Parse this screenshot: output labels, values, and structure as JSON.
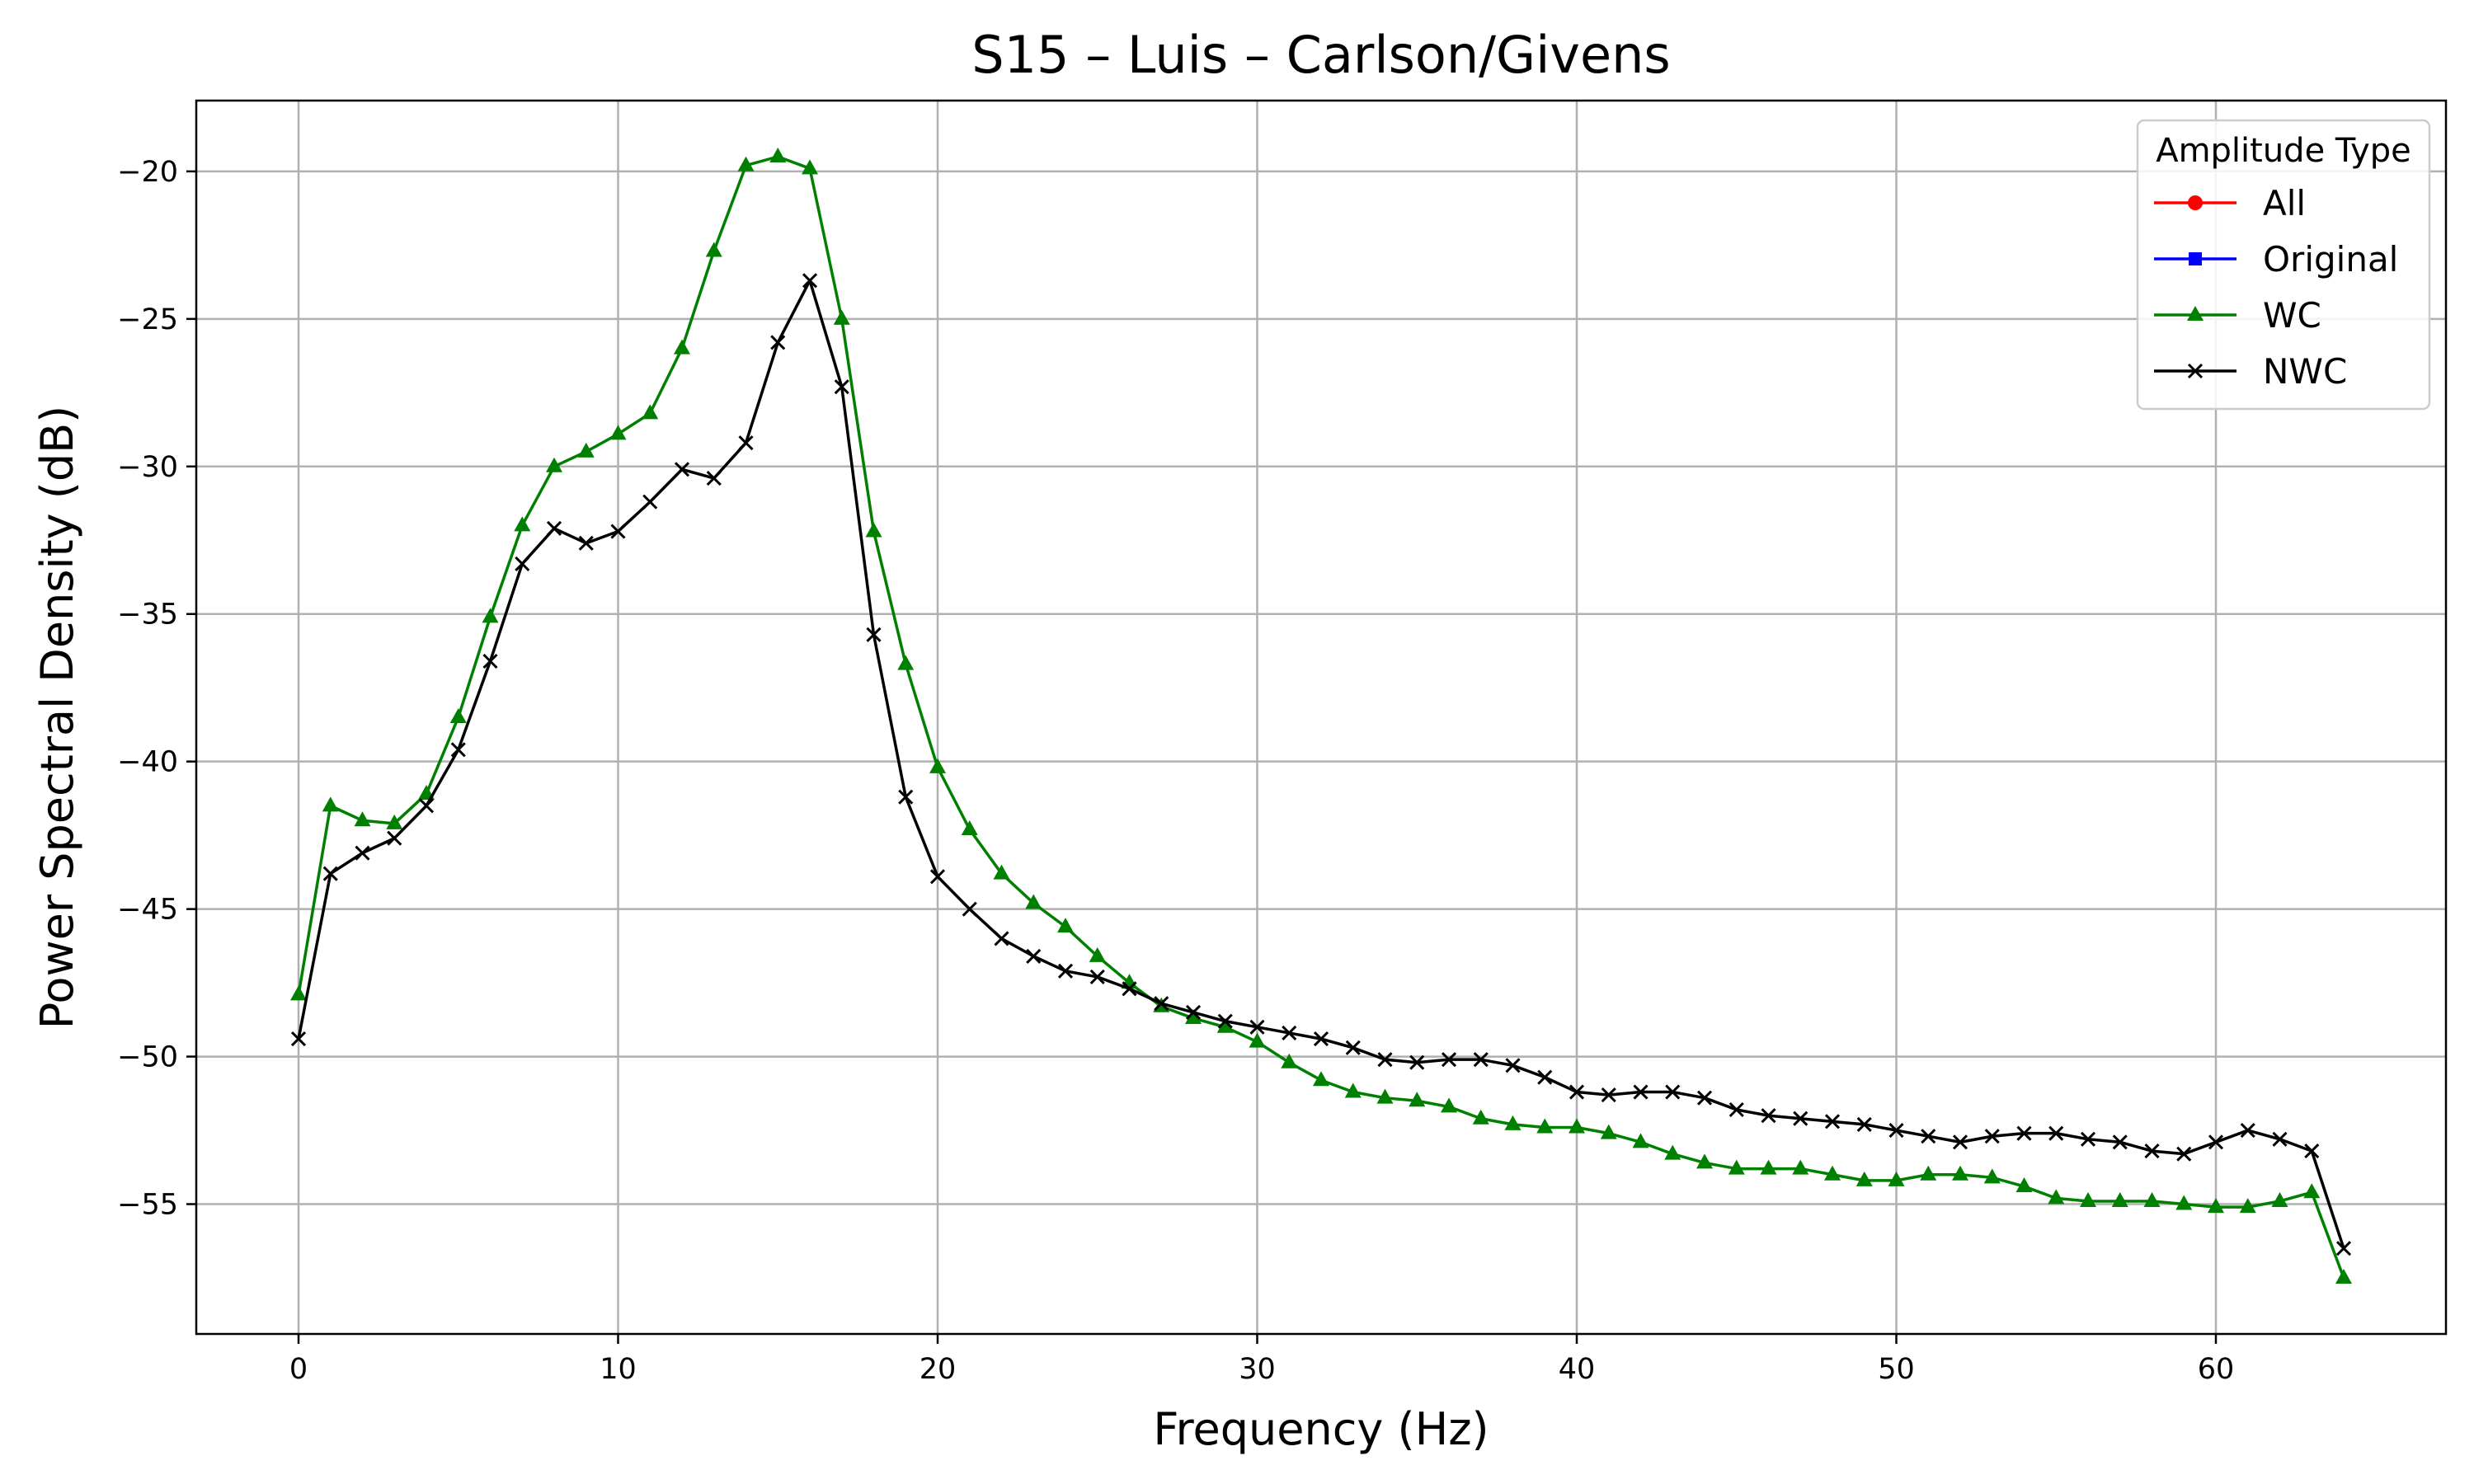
{
  "chart_data": {
    "type": "line",
    "title": "S15 – Luis – Carlson/Givens",
    "xlabel": "Frequency (Hz)",
    "ylabel": "Power Spectral Density (dB)",
    "xlim": [
      -3.2,
      67.2
    ],
    "ylim": [
      -59.4,
      -17.6
    ],
    "xticks": [
      0,
      10,
      20,
      30,
      40,
      50,
      60
    ],
    "yticks": [
      -20,
      -25,
      -30,
      -35,
      -40,
      -45,
      -50,
      -55
    ],
    "xtick_labels": [
      "0",
      "10",
      "20",
      "30",
      "40",
      "50",
      "60"
    ],
    "ytick_labels": [
      "−20",
      "−25",
      "−30",
      "−35",
      "−40",
      "−45",
      "−50",
      "−55"
    ],
    "grid": true,
    "legend": {
      "title": "Amplitude Type",
      "placement": "top-right",
      "entries": [
        "All",
        "Original",
        "WC",
        "NWC"
      ]
    },
    "series": [
      {
        "name": "All",
        "color": "#ff0000",
        "marker": "circle",
        "x": [],
        "y": []
      },
      {
        "name": "Original",
        "color": "#0000ff",
        "marker": "square",
        "x": [],
        "y": []
      },
      {
        "name": "WC",
        "color": "#008000",
        "marker": "triangle",
        "x": [
          0,
          1,
          2,
          3,
          4,
          5,
          6,
          7,
          8,
          9,
          10,
          11,
          12,
          13,
          14,
          15,
          16,
          17,
          18,
          19,
          20,
          21,
          22,
          23,
          24,
          25,
          26,
          27,
          28,
          29,
          30,
          31,
          32,
          33,
          34,
          35,
          36,
          37,
          38,
          39,
          40,
          41,
          42,
          43,
          44,
          45,
          46,
          47,
          48,
          49,
          50,
          51,
          52,
          53,
          54,
          55,
          56,
          57,
          58,
          59,
          60,
          61,
          62,
          63,
          64
        ],
        "y": [
          -47.9,
          -41.5,
          -42.0,
          -42.1,
          -41.1,
          -38.5,
          -35.1,
          -32.0,
          -30.0,
          -29.5,
          -28.9,
          -28.2,
          -26.0,
          -22.7,
          -19.8,
          -19.5,
          -19.9,
          -25.0,
          -32.2,
          -36.7,
          -40.2,
          -42.3,
          -43.8,
          -44.8,
          -45.6,
          -46.6,
          -47.5,
          -48.3,
          -48.7,
          -49.0,
          -49.5,
          -50.2,
          -50.8,
          -51.2,
          -51.4,
          -51.5,
          -51.7,
          -52.1,
          -52.3,
          -52.4,
          -52.4,
          -52.6,
          -52.9,
          -53.3,
          -53.6,
          -53.8,
          -53.8,
          -53.8,
          -54.0,
          -54.2,
          -54.2,
          -54.0,
          -54.0,
          -54.1,
          -54.4,
          -54.8,
          -54.9,
          -54.9,
          -54.9,
          -55.0,
          -55.1,
          -55.1,
          -54.9,
          -54.6,
          -57.5
        ]
      },
      {
        "name": "NWC",
        "color": "#000000",
        "marker": "x",
        "x": [
          0,
          1,
          2,
          3,
          4,
          5,
          6,
          7,
          8,
          9,
          10,
          11,
          12,
          13,
          14,
          15,
          16,
          17,
          18,
          19,
          20,
          21,
          22,
          23,
          24,
          25,
          26,
          27,
          28,
          29,
          30,
          31,
          32,
          33,
          34,
          35,
          36,
          37,
          38,
          39,
          40,
          41,
          42,
          43,
          44,
          45,
          46,
          47,
          48,
          49,
          50,
          51,
          52,
          53,
          54,
          55,
          56,
          57,
          58,
          59,
          60,
          61,
          62,
          63,
          64
        ],
        "y": [
          -49.4,
          -43.8,
          -43.1,
          -42.6,
          -41.5,
          -39.6,
          -36.6,
          -33.3,
          -32.1,
          -32.6,
          -32.2,
          -31.2,
          -30.1,
          -30.4,
          -29.2,
          -25.8,
          -23.7,
          -27.3,
          -35.7,
          -41.2,
          -43.9,
          -45.0,
          -46.0,
          -46.6,
          -47.1,
          -47.3,
          -47.7,
          -48.2,
          -48.5,
          -48.8,
          -49.0,
          -49.2,
          -49.4,
          -49.7,
          -50.1,
          -50.2,
          -50.1,
          -50.1,
          -50.3,
          -50.7,
          -51.2,
          -51.3,
          -51.2,
          -51.2,
          -51.4,
          -51.8,
          -52.0,
          -52.1,
          -52.2,
          -52.3,
          -52.5,
          -52.7,
          -52.9,
          -52.7,
          -52.6,
          -52.6,
          -52.8,
          -52.9,
          -53.2,
          -53.3,
          -52.9,
          -52.5,
          -52.8,
          -53.2,
          -56.5
        ]
      }
    ]
  }
}
